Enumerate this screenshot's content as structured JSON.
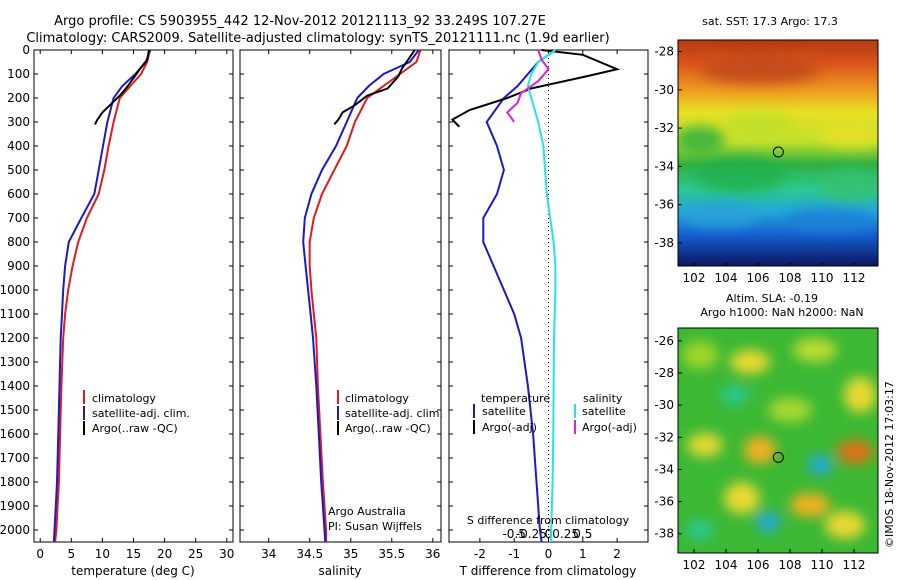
{
  "header": {
    "title_line1": "Argo profile: CS 5903955_442 12-Nov-2012 20121113_92 33.249S 107.27E",
    "title_line2": "Climatology: CARS2009. Satellite-adjusted climatology: synTS_20121111.nc (1.9d earlier)"
  },
  "colors": {
    "climatology": "#e41a1c",
    "satellite": "#1a1acc",
    "argo": "#000000",
    "satellite_salinity": "#22e5e5",
    "argo_salinity": "#dd22dd"
  },
  "chart_data": [
    {
      "id": "temperature",
      "type": "line",
      "xlabel": "temperature (deg C)",
      "ylabel": "",
      "xlim": [
        -1,
        31
      ],
      "ylim": [
        0,
        2050
      ],
      "xticks": [
        0,
        5,
        10,
        15,
        20,
        25,
        30
      ],
      "yticks": [
        0,
        100,
        200,
        300,
        400,
        500,
        600,
        700,
        800,
        900,
        1000,
        1100,
        1200,
        1300,
        1400,
        1500,
        1600,
        1700,
        1800,
        1900,
        2000
      ],
      "y_inverted": true,
      "legend": [
        "climatology",
        "satellite-adj. clim.",
        "Argo(..raw -QC)"
      ],
      "series": [
        {
          "name": "climatology",
          "color": "#e41a1c",
          "x": [
            17.6,
            17.2,
            16.2,
            14.5,
            12.8,
            11.8,
            11.0,
            10.3,
            9.4,
            7.5,
            6.1,
            5.2,
            4.5,
            4.0,
            3.7,
            3.4,
            3.2,
            3.0,
            2.8,
            2.6,
            2.4
          ],
          "y": [
            0,
            50,
            100,
            150,
            200,
            300,
            400,
            500,
            600,
            700,
            800,
            900,
            1000,
            1100,
            1200,
            1400,
            1600,
            1800,
            1900,
            2000,
            2050
          ]
        },
        {
          "name": "satellite-adj. clim.",
          "color": "#1a1acc",
          "x": [
            17.7,
            17.0,
            15.3,
            13.2,
            11.8,
            10.8,
            10.1,
            9.4,
            8.7,
            6.6,
            4.6,
            4.0,
            3.7,
            3.5,
            3.3,
            3.1,
            2.9,
            2.7,
            2.5,
            2.3,
            2.2
          ],
          "y": [
            0,
            50,
            100,
            150,
            200,
            300,
            400,
            500,
            600,
            700,
            800,
            900,
            1000,
            1100,
            1200,
            1400,
            1600,
            1800,
            1900,
            2000,
            2050
          ]
        },
        {
          "name": "Argo(..raw -QC)",
          "color": "#000000",
          "x": [
            17.5,
            17.2,
            16.0,
            15.2,
            13.8,
            12.8,
            11.2,
            10.0,
            9.2,
            8.8
          ],
          "y": [
            0,
            40,
            80,
            110,
            160,
            190,
            230,
            260,
            290,
            310
          ]
        }
      ]
    },
    {
      "id": "salinity",
      "type": "line",
      "xlabel": "salinity",
      "xlim": [
        33.65,
        36.1
      ],
      "ylim": [
        0,
        2050
      ],
      "xticks": [
        34,
        34.5,
        35,
        35.5,
        36
      ],
      "xtick_labels": [
        "34",
        "34.5",
        "35",
        "35.5",
        "36"
      ],
      "y_inverted": true,
      "legend": [
        "climatology",
        "satellite-adj. clim.",
        "Argo(..raw -QC)"
      ],
      "annotation_line1": "Argo Australia",
      "annotation_line2": "PI: Susan Wijffels",
      "series": [
        {
          "name": "climatology",
          "color": "#e41a1c",
          "x": [
            35.85,
            35.8,
            35.6,
            35.4,
            35.2,
            35.05,
            34.95,
            34.8,
            34.65,
            34.55,
            34.5,
            34.5,
            34.52,
            34.55,
            34.58,
            34.6,
            34.63,
            34.66,
            34.68,
            34.7,
            34.7
          ],
          "y": [
            0,
            50,
            100,
            150,
            200,
            300,
            400,
            500,
            600,
            700,
            800,
            900,
            1000,
            1100,
            1200,
            1400,
            1600,
            1800,
            1900,
            2000,
            2050
          ]
        },
        {
          "name": "satellite-adj. clim.",
          "color": "#1a1acc",
          "x": [
            35.83,
            35.72,
            35.4,
            35.22,
            35.08,
            34.95,
            34.82,
            34.65,
            34.52,
            34.44,
            34.42,
            34.45,
            34.48,
            34.51,
            34.54,
            34.58,
            34.61,
            34.64,
            34.66,
            34.68,
            34.69
          ],
          "y": [
            0,
            50,
            100,
            150,
            200,
            300,
            400,
            500,
            600,
            700,
            800,
            900,
            1000,
            1100,
            1200,
            1400,
            1600,
            1800,
            1900,
            2000,
            2050
          ]
        },
        {
          "name": "Argo(..raw -QC)",
          "color": "#000000",
          "x": [
            35.78,
            35.7,
            35.62,
            35.58,
            35.45,
            35.2,
            35.05,
            34.9,
            34.85,
            34.8
          ],
          "y": [
            0,
            40,
            80,
            110,
            160,
            190,
            230,
            260,
            290,
            310
          ]
        }
      ]
    },
    {
      "id": "difference",
      "type": "line",
      "xlabel": "T difference from climatology",
      "xlabel_top": "S difference from climatology",
      "xlim": [
        -2.9,
        2.9
      ],
      "ylim": [
        0,
        2050
      ],
      "xticks": [
        -2,
        -1,
        0,
        1,
        2
      ],
      "xtick_labels": [
        "-2",
        "-1",
        "0",
        "1",
        "2"
      ],
      "s_ticks": [
        -1,
        -0.5,
        0,
        0.5,
        1
      ],
      "s_tick_labels": [
        "-0.5",
        "-0.25",
        "0",
        "0.25",
        "0.5"
      ],
      "y_inverted": true,
      "legend_temperature_title": "temperature",
      "legend_salinity_title": "salinity",
      "legend": [
        "satellite",
        "Argo(-adj)",
        "satellite",
        "Argo(-adj)"
      ],
      "series": [
        {
          "name": "satellite",
          "group": "temperature",
          "color": "#1a1acc",
          "x": [
            0.2,
            -0.3,
            -0.6,
            -0.9,
            -1.3,
            -1.8,
            -1.5,
            -1.3,
            -1.5,
            -1.9,
            -1.9,
            -1.6,
            -1.3,
            -1.0,
            -0.8,
            -0.6,
            -0.45,
            -0.35,
            -0.3,
            -0.25,
            -0.2
          ],
          "y": [
            0,
            50,
            100,
            150,
            200,
            300,
            400,
            500,
            600,
            700,
            800,
            900,
            1000,
            1100,
            1200,
            1400,
            1600,
            1800,
            1900,
            2000,
            2050
          ]
        },
        {
          "name": "Argo(-adj)",
          "group": "temperature",
          "color": "#000000",
          "x": [
            -0.2,
            1.0,
            2.0,
            1.1,
            -0.5,
            -1.2,
            -2.3,
            -2.8,
            -2.6
          ],
          "y": [
            0,
            20,
            80,
            110,
            160,
            200,
            250,
            290,
            320
          ]
        },
        {
          "name": "satellite",
          "group": "salinity",
          "color": "#22e5e5",
          "x": [
            0.2,
            -0.3,
            -0.5,
            -0.6,
            -0.5,
            -0.3,
            -0.15,
            -0.1,
            -0.05,
            0.05,
            0.15,
            0.2,
            0.2,
            0.18,
            0.16,
            0.15,
            0.14,
            0.12,
            0.1,
            0.08,
            0.08
          ],
          "y": [
            0,
            50,
            100,
            150,
            200,
            300,
            400,
            500,
            600,
            700,
            800,
            900,
            1000,
            1100,
            1200,
            1400,
            1600,
            1800,
            1900,
            2000,
            2050
          ]
        },
        {
          "name": "Argo(-adj)",
          "group": "salinity",
          "color": "#dd22dd",
          "x": [
            -0.3,
            -0.2,
            0.0,
            -0.3,
            -0.8,
            -0.9,
            -1.2,
            -1.0
          ],
          "y": [
            0,
            40,
            80,
            130,
            180,
            220,
            260,
            300
          ]
        }
      ]
    },
    {
      "id": "sst_map",
      "type": "heatmap",
      "title": "sat. SST: 17.3 Argo: 17.3",
      "xlim": [
        101,
        113.5
      ],
      "ylim": [
        -39.2,
        -27.4
      ],
      "xticks": [
        102,
        104,
        106,
        108,
        110,
        112
      ],
      "yticks": [
        -28,
        -30,
        -32,
        -34,
        -36,
        -38
      ],
      "marker": {
        "lon": 107.27,
        "lat": -33.249
      }
    },
    {
      "id": "sla_map",
      "type": "heatmap",
      "title_line1": "Altim. SLA: -0.19",
      "title_line2": "Argo h1000: NaN h2000: NaN",
      "xlim": [
        101,
        113.5
      ],
      "ylim": [
        -39.2,
        -25.2
      ],
      "xticks": [
        102,
        104,
        106,
        108,
        110,
        112
      ],
      "yticks": [
        -26,
        -28,
        -30,
        -32,
        -34,
        -36,
        -38
      ],
      "marker": {
        "lon": 107.27,
        "lat": -33.249
      }
    }
  ],
  "footer": {
    "credit": "©IMOS 18-Nov-2012 17:03:17"
  }
}
